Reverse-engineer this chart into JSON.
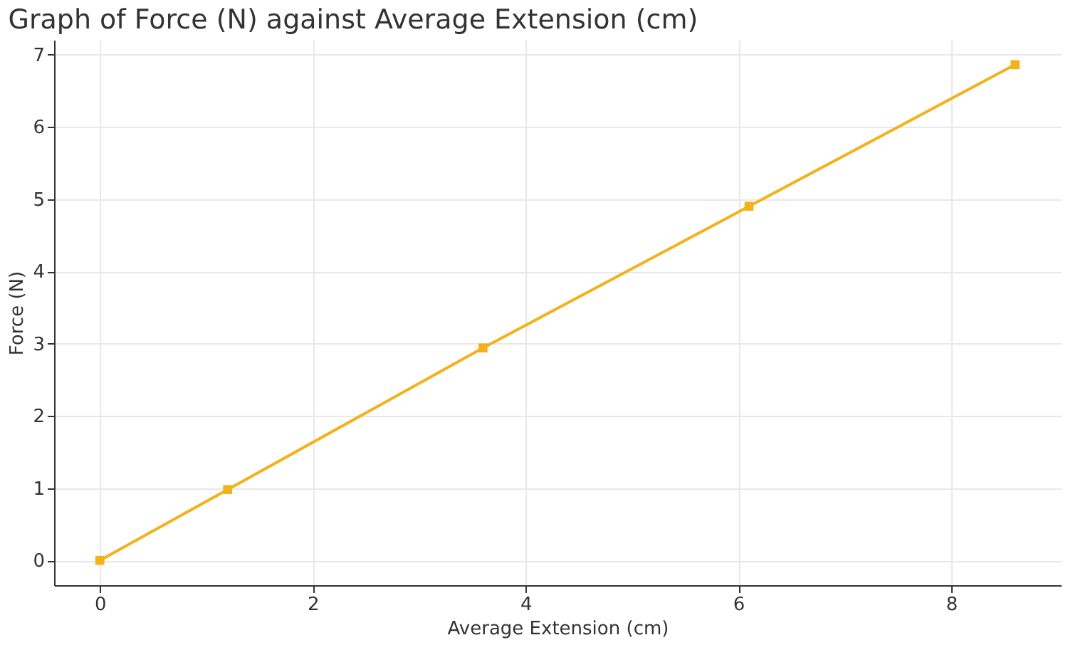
{
  "chart_data": {
    "type": "line",
    "title": "Graph of Force (N) against Average Extension (cm)",
    "xlabel": "Average Extension (cm)",
    "ylabel": "Force (N)",
    "x": [
      0,
      1.2,
      3.6,
      6.1,
      8.6
    ],
    "series": [
      {
        "color": "#f2b21b",
        "values": [
          0,
          0.98,
          2.94,
          4.9,
          6.86
        ]
      }
    ],
    "xlim": [
      -0.43,
      9.03
    ],
    "xticks": [
      0,
      2,
      4,
      6,
      8
    ],
    "ylim": [
      -0.343,
      7.203
    ],
    "yticks": [
      0,
      1,
      2,
      3,
      4,
      5,
      6,
      7
    ],
    "grid": true,
    "marker": "square",
    "line_style": "solid"
  }
}
